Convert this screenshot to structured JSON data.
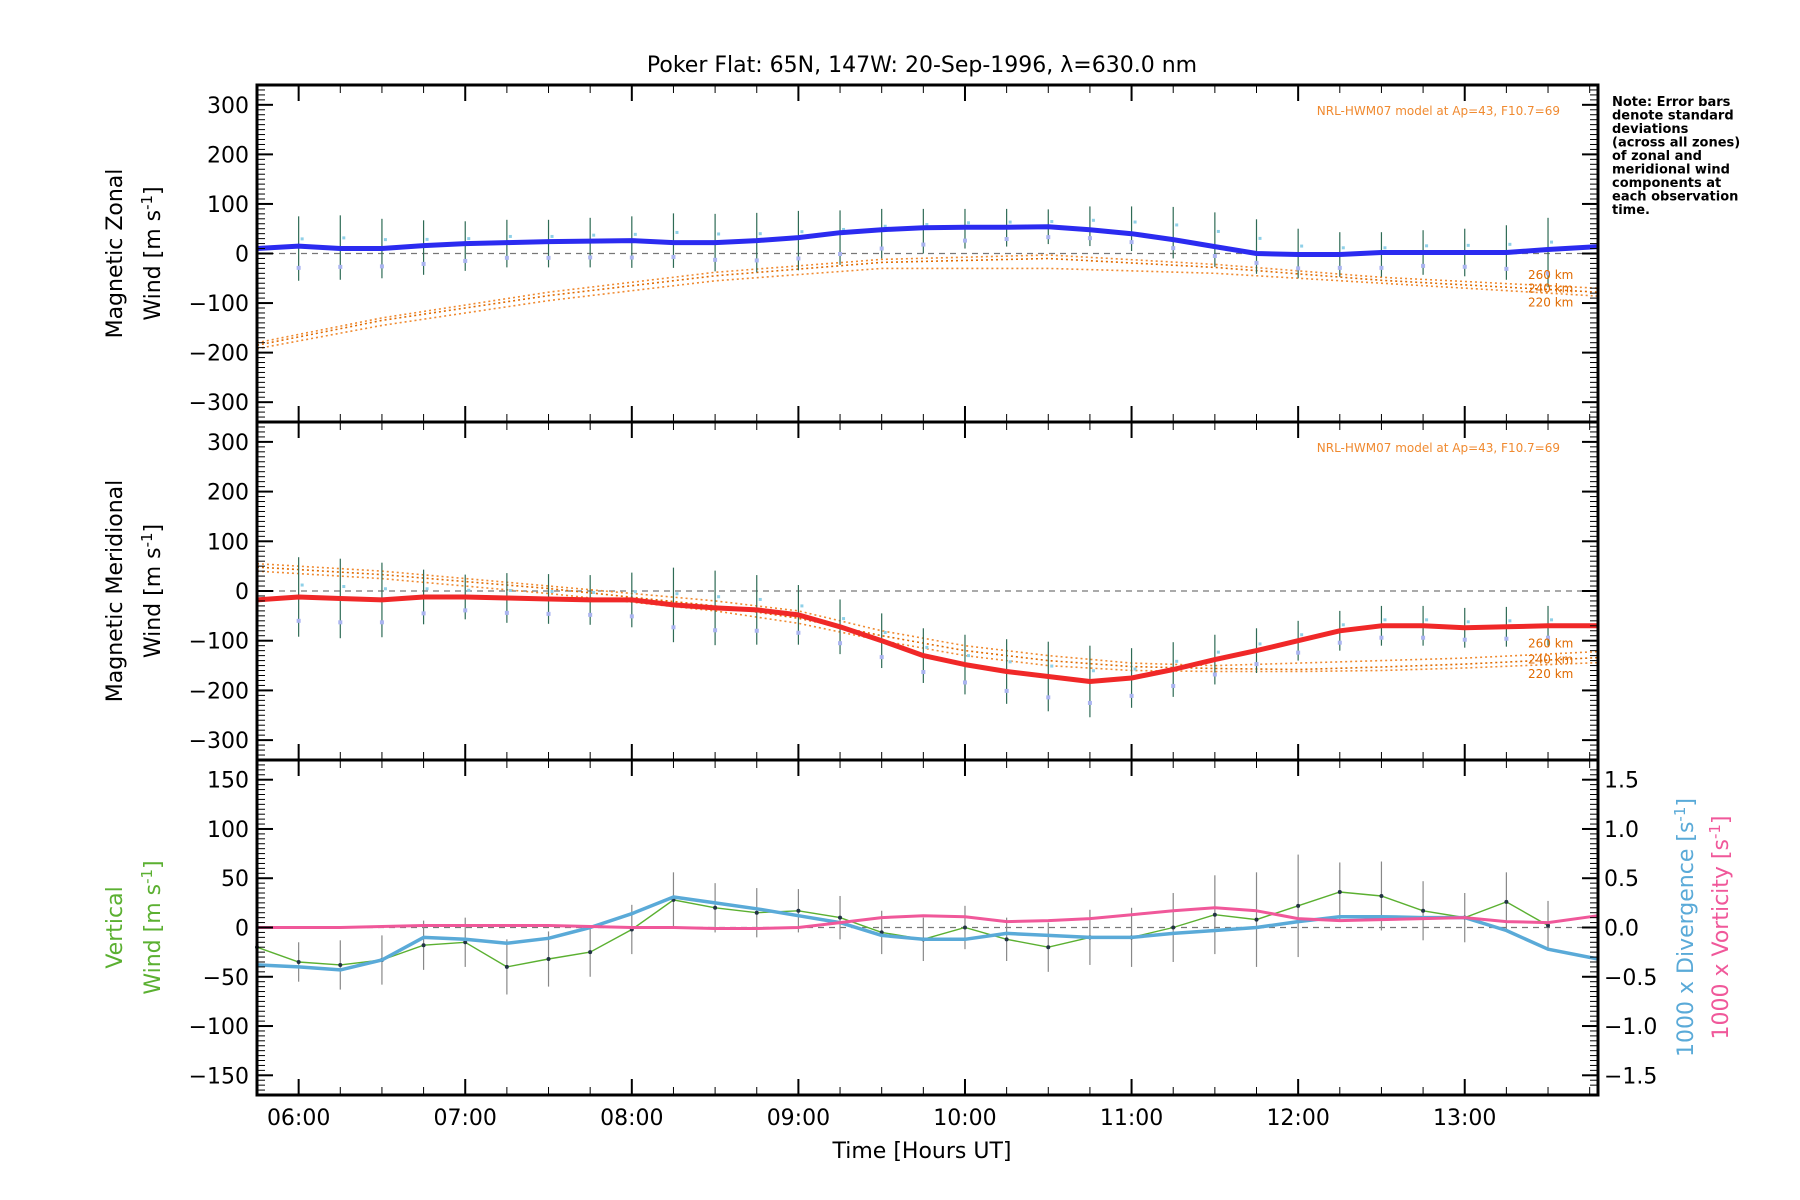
{
  "chart_data": {
    "type": "line",
    "title": "Poker Flat: 65N, 147W: 20-Sep-1996, λ=630.0 nm",
    "xlabel": "Time [Hours UT]",
    "xlim": [
      5.75,
      13.8
    ],
    "x_tick_labels": [
      "06:00",
      "07:00",
      "08:00",
      "09:00",
      "10:00",
      "11:00",
      "12:00",
      "13:00"
    ],
    "x_tick_values": [
      6,
      7,
      8,
      9,
      10,
      11,
      12,
      13
    ],
    "note_lines": [
      "Note: Error bars",
      "denote standard",
      "deviations",
      "(across all zones)",
      "of zonal and",
      "meridional wind",
      "components at",
      "each observation",
      "time."
    ],
    "times": [
      6.0,
      6.25,
      6.5,
      6.75,
      7.0,
      7.25,
      7.5,
      7.75,
      8.0,
      8.25,
      8.5,
      8.75,
      9.0,
      9.25,
      9.5,
      9.75,
      10.0,
      10.25,
      10.5,
      10.75,
      11.0,
      11.25,
      11.5,
      11.75,
      12.0,
      12.25,
      12.5,
      12.75,
      13.0,
      13.25,
      13.5
    ],
    "panels": [
      {
        "name": "zonal",
        "ylabel_line1": "Magnetic Zonal",
        "ylabel_line2": "Wind [m s",
        "ylabel_sup": "-1",
        "ylabel_close": "]",
        "ylim": [
          -340,
          340
        ],
        "yticks": [
          -300,
          -200,
          -100,
          0,
          100,
          200,
          300
        ],
        "ytick_labels": [
          "−300",
          "−200",
          "−100",
          "0",
          "100",
          "200",
          "300"
        ],
        "model_label": "NRL-HWM07 model at Ap=43, F10.7=69",
        "alt_labels": [
          "260 km",
          "240 km",
          "220 km"
        ],
        "wind_color": "#2b2bf0",
        "wind_x": [
          5.75,
          6.0,
          6.25,
          6.5,
          6.75,
          7.0,
          7.25,
          7.5,
          7.75,
          8.0,
          8.25,
          8.5,
          8.75,
          9.0,
          9.25,
          9.5,
          9.75,
          10.0,
          10.25,
          10.5,
          10.75,
          11.0,
          11.25,
          11.5,
          11.75,
          12.0,
          12.25,
          12.5,
          12.75,
          13.0,
          13.25,
          13.5,
          13.8
        ],
        "wind_y": [
          10,
          15,
          10,
          10,
          16,
          20,
          22,
          24,
          25,
          26,
          22,
          22,
          26,
          32,
          42,
          48,
          52,
          53,
          53,
          54,
          48,
          40,
          28,
          14,
          0,
          -2,
          -2,
          2,
          2,
          2,
          2,
          8,
          14
        ],
        "error_center": [
          10,
          12,
          10,
          12,
          15,
          20,
          20,
          22,
          23,
          26,
          22,
          22,
          26,
          32,
          40,
          45,
          50,
          52,
          54,
          55,
          50,
          42,
          28,
          14,
          0,
          -2,
          -2,
          2,
          2,
          2,
          2
        ],
        "error_sd": [
          65,
          65,
          60,
          55,
          50,
          48,
          48,
          50,
          52,
          55,
          58,
          60,
          60,
          55,
          50,
          45,
          40,
          38,
          35,
          40,
          45,
          52,
          55,
          55,
          50,
          45,
          45,
          45,
          48,
          55,
          70
        ],
        "model_series": [
          {
            "name": "260 km",
            "x": [
              5.75,
              6.5,
              7.5,
              8.5,
              9.5,
              10.5,
              11.5,
              12.5,
              13.8
            ],
            "y": [
              -180,
              -130,
              -78,
              -38,
              -12,
              -3,
              -22,
              -48,
              -70
            ]
          },
          {
            "name": "240 km",
            "x": [
              5.75,
              6.5,
              7.5,
              8.5,
              9.5,
              10.5,
              11.5,
              12.5,
              13.8
            ],
            "y": [
              -185,
              -135,
              -85,
              -45,
              -18,
              -10,
              -28,
              -54,
              -78
            ]
          },
          {
            "name": "220 km",
            "x": [
              5.75,
              6.5,
              7.5,
              8.5,
              9.5,
              10.5,
              11.5,
              12.5,
              13.8
            ],
            "y": [
              -192,
              -145,
              -95,
              -55,
              -30,
              -30,
              -40,
              -60,
              -86
            ]
          }
        ]
      },
      {
        "name": "meridional",
        "ylabel_line1": "Magnetic Meridional",
        "ylabel_line2": "Wind [m s",
        "ylabel_sup": "-1",
        "ylabel_close": "]",
        "ylim": [
          -340,
          340
        ],
        "yticks": [
          -300,
          -200,
          -100,
          0,
          100,
          200,
          300
        ],
        "ytick_labels": [
          "−300",
          "−200",
          "−100",
          "0",
          "100",
          "200",
          "300"
        ],
        "model_label": "NRL-HWM07 model at Ap=43, F10.7=69",
        "alt_labels": [
          "260 km",
          "240 km",
          "220 km"
        ],
        "wind_color": "#f02828",
        "wind_x": [
          5.75,
          6.0,
          6.25,
          6.5,
          6.75,
          7.0,
          7.25,
          7.5,
          7.75,
          8.0,
          8.25,
          8.5,
          8.75,
          9.0,
          9.25,
          9.5,
          9.75,
          10.0,
          10.25,
          10.5,
          10.75,
          11.0,
          11.25,
          11.5,
          11.75,
          12.0,
          12.25,
          12.5,
          12.75,
          13.0,
          13.25,
          13.5,
          13.8
        ],
        "wind_y": [
          -18,
          -12,
          -15,
          -18,
          -12,
          -12,
          -14,
          -16,
          -18,
          -18,
          -28,
          -34,
          -38,
          -48,
          -72,
          -100,
          -130,
          -148,
          -162,
          -172,
          -182,
          -175,
          -158,
          -138,
          -120,
          -100,
          -80,
          -70,
          -70,
          -74,
          -72,
          -70,
          -70
        ],
        "error_center": [
          -12,
          -15,
          -18,
          -12,
          -12,
          -14,
          -16,
          -18,
          -18,
          -28,
          -34,
          -38,
          -48,
          -72,
          -100,
          -130,
          -148,
          -162,
          -172,
          -182,
          -175,
          -158,
          -138,
          -120,
          -100,
          -80,
          -70,
          -70,
          -74,
          -72,
          -70
        ],
        "error_sd": [
          80,
          80,
          75,
          55,
          45,
          50,
          50,
          50,
          55,
          75,
          75,
          70,
          60,
          55,
          55,
          55,
          60,
          65,
          70,
          72,
          60,
          55,
          50,
          45,
          40,
          40,
          40,
          40,
          40,
          40,
          40
        ],
        "model_series": [
          {
            "name": "260 km",
            "x": [
              5.75,
              6.5,
              7.5,
              8.5,
              9.0,
              9.5,
              10.0,
              10.5,
              11.0,
              11.5,
              12.0,
              12.5,
              13.0,
              13.8
            ],
            "y": [
              55,
              40,
              10,
              -20,
              -40,
              -80,
              -110,
              -130,
              -145,
              -150,
              -145,
              -140,
              -135,
              -122
            ]
          },
          {
            "name": "240 km",
            "x": [
              5.75,
              6.5,
              7.5,
              8.5,
              9.0,
              9.5,
              10.0,
              10.5,
              11.0,
              11.5,
              12.0,
              12.5,
              13.0,
              13.8
            ],
            "y": [
              48,
              33,
              5,
              -30,
              -55,
              -90,
              -120,
              -140,
              -152,
              -156,
              -158,
              -153,
              -147,
              -134
            ]
          },
          {
            "name": "220 km",
            "x": [
              5.75,
              6.5,
              7.5,
              8.5,
              9.0,
              9.5,
              10.0,
              10.5,
              11.0,
              11.5,
              12.0,
              12.5,
              13.0,
              13.8
            ],
            "y": [
              40,
              25,
              -5,
              -40,
              -65,
              -100,
              -130,
              -150,
              -160,
              -162,
              -162,
              -160,
              -155,
              -144
            ]
          }
        ]
      },
      {
        "name": "vertical",
        "ylabel_line1": "Vertical",
        "ylabel_line2": "Wind [m s",
        "ylabel_sup": "-1",
        "ylabel_close": "]",
        "ylabel_color": "#5bb031",
        "ylim": [
          -170,
          170
        ],
        "yticks": [
          -150,
          -100,
          -50,
          0,
          50,
          100,
          150
        ],
        "ytick_labels": [
          "−150",
          "−100",
          "−50",
          "0",
          "50",
          "100",
          "150"
        ],
        "right_ylim": [
          -1.7,
          1.7
        ],
        "right_yticks": [
          -1.5,
          -1.0,
          -0.5,
          0.0,
          0.5,
          1.0,
          1.5
        ],
        "right_ytick_labels": [
          "−1.5",
          "−1.0",
          "−0.5",
          "0.0",
          "0.5",
          "1.0",
          "1.5"
        ],
        "right_label1": "1000 x Divergence [s",
        "right_label1_color": "#5aaad8",
        "right_label2": "1000 x Vorticity [s",
        "right_label2_color": "#f0589a",
        "vert_x": [
          5.75,
          6.0,
          6.25,
          6.5,
          6.75,
          7.0,
          7.25,
          7.5,
          7.75,
          8.0,
          8.25,
          8.5,
          8.75,
          9.0,
          9.25,
          9.5,
          9.75,
          10.0,
          10.25,
          10.5,
          10.75,
          11.0,
          11.25,
          11.5,
          11.75,
          12.0,
          12.25,
          12.5,
          12.75,
          13.0,
          13.25,
          13.5
        ],
        "vert_y": [
          -20,
          -35,
          -38,
          -33,
          -18,
          -15,
          -40,
          -32,
          -25,
          -2,
          28,
          20,
          15,
          17,
          10,
          -5,
          -12,
          0,
          -12,
          -20,
          -10,
          -10,
          0,
          13,
          8,
          22,
          36,
          32,
          17,
          10,
          26,
          2
        ],
        "vert_sd": [
          20,
          20,
          25,
          25,
          25,
          25,
          28,
          28,
          25,
          25,
          28,
          25,
          25,
          22,
          22,
          22,
          22,
          22,
          22,
          25,
          28,
          30,
          35,
          40,
          48,
          52,
          30,
          35,
          30,
          25,
          30,
          25
        ],
        "div_x": [
          5.75,
          6.0,
          6.25,
          6.5,
          6.75,
          7.0,
          7.25,
          7.5,
          7.75,
          8.0,
          8.25,
          8.5,
          8.75,
          9.0,
          9.25,
          9.5,
          9.75,
          10.0,
          10.25,
          10.5,
          10.75,
          11.0,
          11.25,
          11.5,
          11.75,
          12.0,
          12.25,
          12.5,
          12.75,
          13.0,
          13.25,
          13.5,
          13.8
        ],
        "div_y": [
          -0.38,
          -0.4,
          -0.43,
          -0.33,
          -0.1,
          -0.12,
          -0.16,
          -0.11,
          0.0,
          0.14,
          0.31,
          0.25,
          0.19,
          0.12,
          0.05,
          -0.08,
          -0.12,
          -0.12,
          -0.06,
          -0.08,
          -0.1,
          -0.1,
          -0.06,
          -0.03,
          0.0,
          0.06,
          0.11,
          0.11,
          0.1,
          0.1,
          -0.03,
          -0.22,
          -0.32
        ],
        "vort_x": [
          5.75,
          6.0,
          6.25,
          6.5,
          6.75,
          7.0,
          7.25,
          7.5,
          7.75,
          8.0,
          8.25,
          8.5,
          8.75,
          9.0,
          9.25,
          9.5,
          9.75,
          10.0,
          10.25,
          10.5,
          10.75,
          11.0,
          11.25,
          11.5,
          11.75,
          12.0,
          12.25,
          12.5,
          12.75,
          13.0,
          13.25,
          13.5,
          13.8
        ],
        "vort_y": [
          0.0,
          0.0,
          0.0,
          0.01,
          0.02,
          0.02,
          0.02,
          0.02,
          0.01,
          0.0,
          0.0,
          -0.01,
          -0.01,
          0.0,
          0.05,
          0.1,
          0.12,
          0.11,
          0.06,
          0.07,
          0.09,
          0.13,
          0.17,
          0.2,
          0.17,
          0.09,
          0.07,
          0.08,
          0.09,
          0.1,
          0.06,
          0.05,
          0.12
        ]
      }
    ]
  }
}
